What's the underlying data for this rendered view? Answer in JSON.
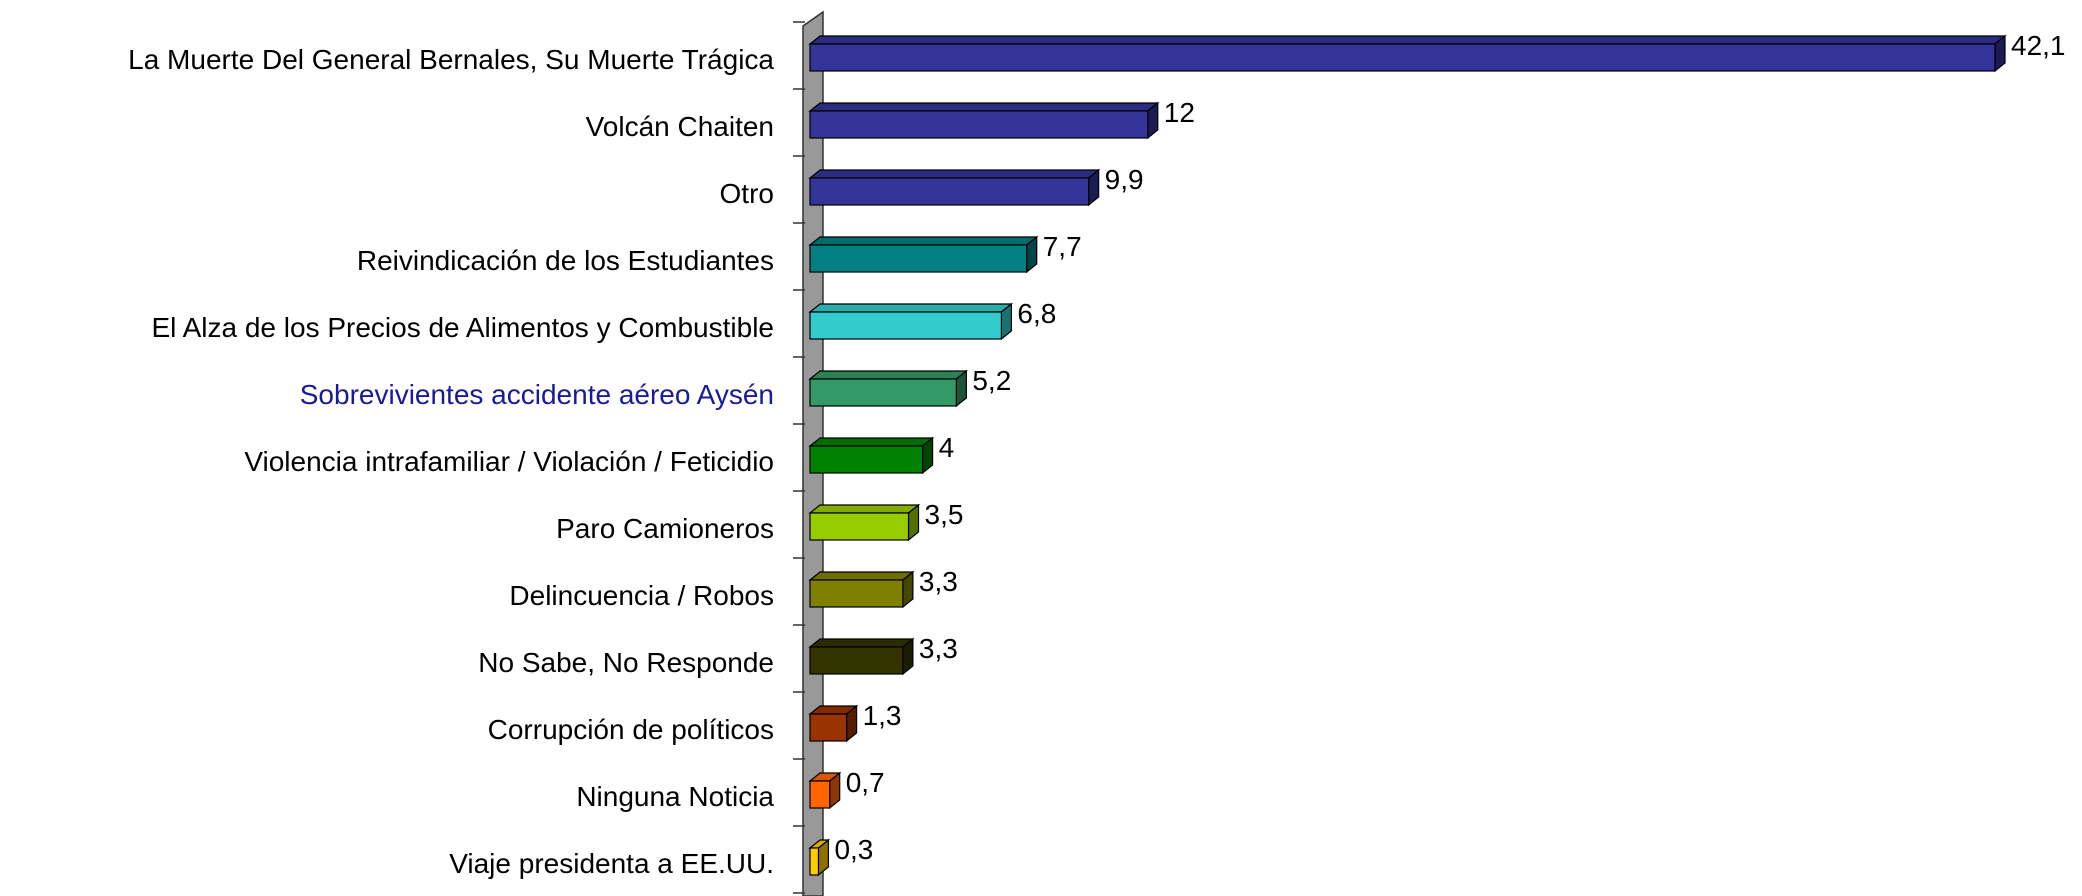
{
  "chart_data": {
    "type": "bar",
    "orientation": "horizontal",
    "three_d": true,
    "categories": [
      "La Muerte Del General Bernales, Su Muerte Trágica",
      "Volcán Chaiten",
      "Otro",
      "Reivindicación de los Estudiantes",
      "El Alza de los Precios de Alimentos y Combustible",
      "Sobrevivientes accidente aéreo Aysén",
      "Violencia intrafamiliar / Violación / Feticidio",
      "Paro Camioneros",
      "Delincuencia / Robos",
      "No Sabe, No Responde",
      "Corrupción de políticos",
      "Ninguna Noticia",
      "Viaje presidenta a EE.UU."
    ],
    "values": [
      42.1,
      12,
      9.9,
      7.7,
      6.8,
      5.2,
      4,
      3.5,
      3.3,
      3.3,
      1.3,
      0.7,
      0.3
    ],
    "value_labels": [
      "42,1",
      "12",
      "9,9",
      "7,7",
      "6,8",
      "5,2",
      "4",
      "3,5",
      "3,3",
      "3,3",
      "1,3",
      "0,7",
      "0,3"
    ],
    "colors": [
      "#333399",
      "#333399",
      "#333399",
      "#008080",
      "#33cccc",
      "#339966",
      "#008000",
      "#99cc00",
      "#808000",
      "#333300",
      "#993300",
      "#ff6600",
      "#ffcc00"
    ],
    "label_colors": [
      "#000000",
      "#000000",
      "#000000",
      "#000000",
      "#000000",
      "#1a1a99",
      "#000000",
      "#000000",
      "#000000",
      "#000000",
      "#000000",
      "#000000",
      "#000000"
    ]
  }
}
